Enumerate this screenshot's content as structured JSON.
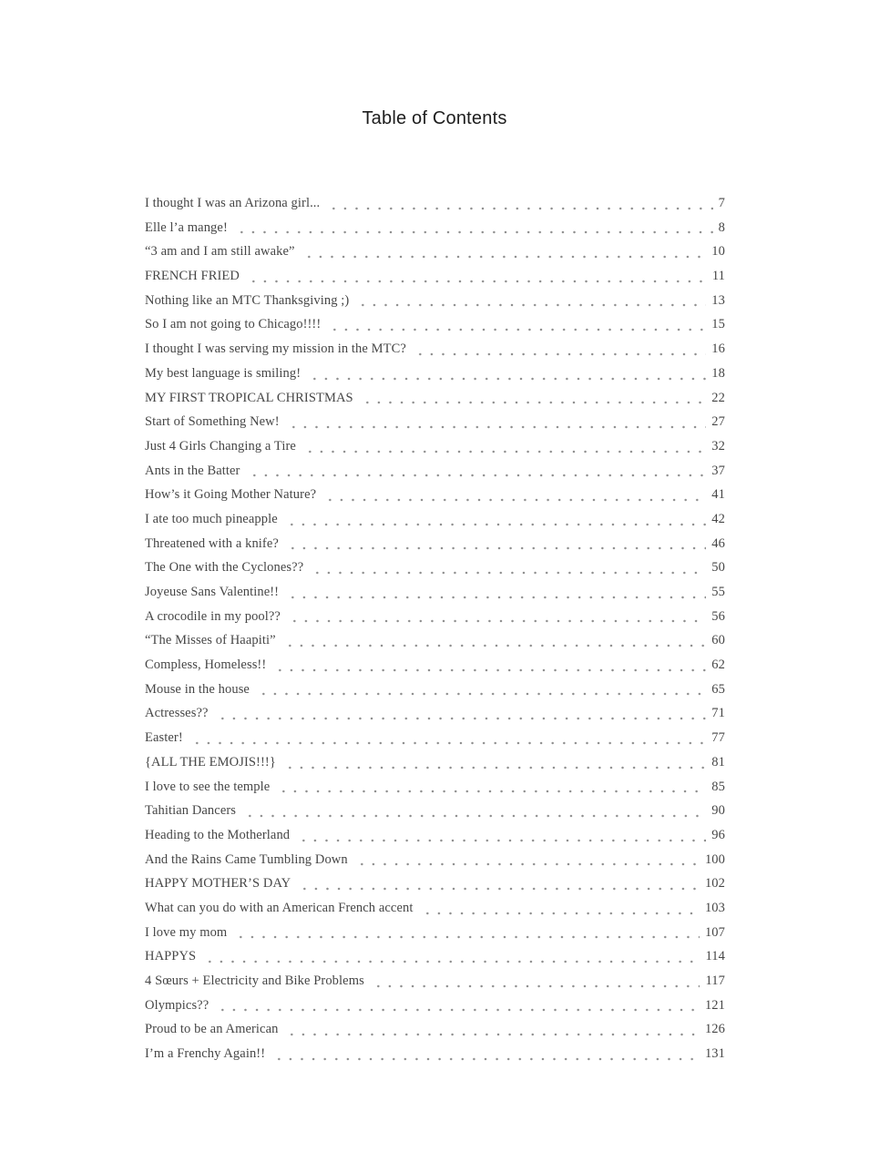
{
  "page": {
    "title": "Table of Contents",
    "background_color": "#ffffff",
    "title_color": "#1d1d1d",
    "text_color": "#464646",
    "dot_leader_color": "#8f8f8f"
  },
  "toc": {
    "entries": [
      {
        "label": "I thought I was an Arizona girl...",
        "page": "7"
      },
      {
        "label": "Elle l’a mange!",
        "page": "8"
      },
      {
        "label": "“3 am and I am still awake”",
        "page": "10"
      },
      {
        "label": "FRENCH FRIED",
        "page": "11"
      },
      {
        "label": "Nothing like an MTC Thanksgiving ;)",
        "page": "13"
      },
      {
        "label": "So I am not going to Chicago!!!!",
        "page": "15"
      },
      {
        "label": "I thought I was serving my mission in the MTC?",
        "page": "16"
      },
      {
        "label": "My best language is smiling!",
        "page": "18"
      },
      {
        "label": "MY FIRST TROPICAL CHRISTMAS",
        "page": "22"
      },
      {
        "label": "Start of Something New!",
        "page": "27"
      },
      {
        "label": "Just 4 Girls Changing a Tire",
        "page": "32"
      },
      {
        "label": "Ants in the Batter",
        "page": "37"
      },
      {
        "label": "How’s it Going Mother Nature?",
        "page": "41"
      },
      {
        "label": "I ate too much pineapple",
        "page": "42"
      },
      {
        "label": "Threatened with a knife?",
        "page": "46"
      },
      {
        "label": "The One with the Cyclones??",
        "page": "50"
      },
      {
        "label": "Joyeuse Sans Valentine!!",
        "page": "55"
      },
      {
        "label": "A crocodile in my pool??",
        "page": "56"
      },
      {
        "label": "“The Misses of Haapiti”",
        "page": "60"
      },
      {
        "label": "Compless, Homeless!!",
        "page": "62"
      },
      {
        "label": "Mouse in the house",
        "page": "65"
      },
      {
        "label": "Actresses??",
        "page": "71"
      },
      {
        "label": "Easter!",
        "page": "77"
      },
      {
        "label": "{ALL THE EMOJIS!!!}",
        "page": "81"
      },
      {
        "label": "I love to see the temple",
        "page": "85"
      },
      {
        "label": "Tahitian Dancers",
        "page": "90"
      },
      {
        "label": "Heading to the Motherland",
        "page": "96"
      },
      {
        "label": "And the Rains Came Tumbling Down",
        "page": "100"
      },
      {
        "label": "HAPPY MOTHER’S DAY",
        "page": "102"
      },
      {
        "label": "What can you do with an American French accent",
        "page": "103"
      },
      {
        "label": "I love my mom",
        "page": "107"
      },
      {
        "label": "HAPPYS",
        "page": "114"
      },
      {
        "label": "4 Sœurs + Electricity and Bike Problems",
        "page": "117"
      },
      {
        "label": "Olympics??",
        "page": "121"
      },
      {
        "label": "Proud to be an American",
        "page": "126"
      },
      {
        "label": "I’m a Frenchy Again!!",
        "page": "131"
      }
    ]
  }
}
